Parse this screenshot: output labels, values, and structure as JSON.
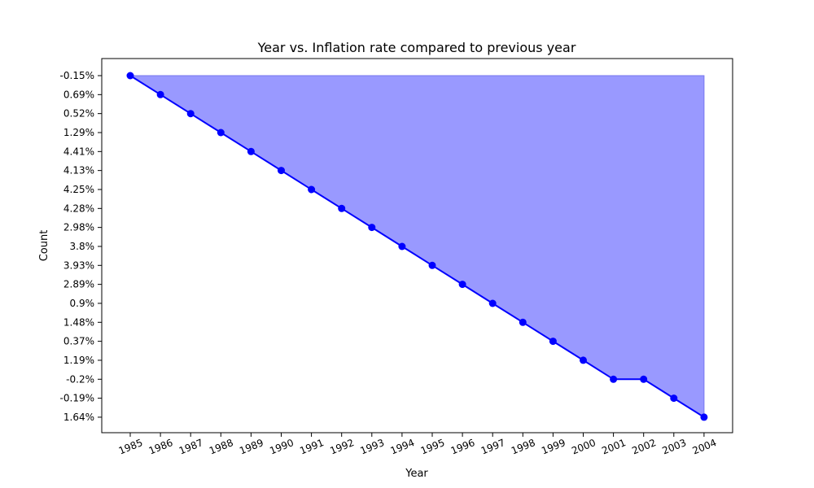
{
  "chart_data": {
    "type": "area",
    "title": "Year vs. Inflation rate compared to previous year",
    "xlabel": "Year",
    "ylabel": "Count",
    "x": [
      "1985",
      "1986",
      "1987",
      "1988",
      "1989",
      "1990",
      "1991",
      "1992",
      "1993",
      "1994",
      "1995",
      "1996",
      "1997",
      "1998",
      "1999",
      "2000",
      "2001",
      "2002",
      "2003",
      "2004"
    ],
    "y_categories": [
      "-0.15%",
      "0.69%",
      "0.52%",
      "1.29%",
      "4.41%",
      "4.13%",
      "4.25%",
      "4.28%",
      "2.98%",
      "3.8%",
      "3.93%",
      "2.89%",
      "0.9%",
      "1.48%",
      "0.37%",
      "1.19%",
      "-0.2%",
      "-0.19%",
      "1.64%"
    ],
    "values": [
      "-0.15%",
      "0.69%",
      "0.52%",
      "1.29%",
      "4.41%",
      "4.13%",
      "4.25%",
      "4.28%",
      "2.98%",
      "3.8%",
      "3.93%",
      "2.89%",
      "0.9%",
      "1.48%",
      "0.37%",
      "1.19%",
      "-0.2%",
      "-0.2%",
      "-0.19%",
      "1.64%"
    ],
    "line_color": "#0000ff",
    "fill_color": "#9999ff",
    "grid": false,
    "legend": "none"
  }
}
